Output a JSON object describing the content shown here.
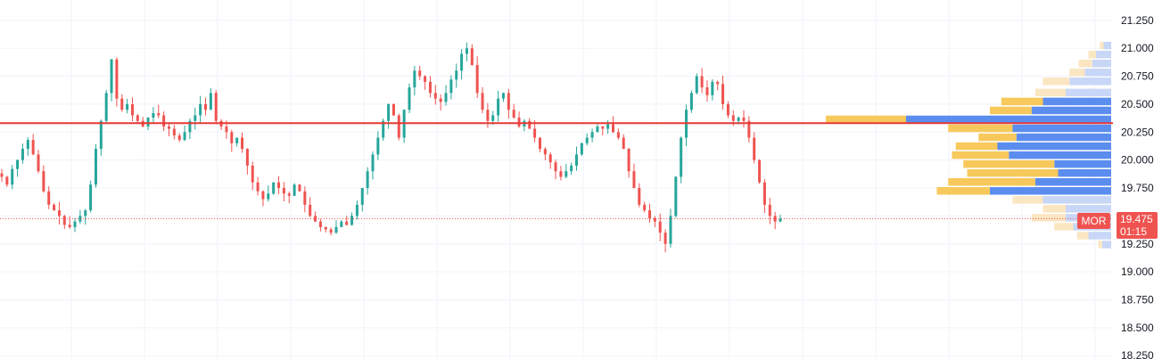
{
  "chart_data": {
    "type": "candlestick",
    "y_axis": {
      "ticks": [
        "21.250",
        "21.000",
        "20.750",
        "20.500",
        "20.250",
        "20.000",
        "19.750",
        "19.500",
        "19.250",
        "19.000",
        "18.750",
        "18.500",
        "18.250"
      ],
      "tick_values": [
        21.25,
        21.0,
        20.75,
        20.5,
        20.25,
        20.0,
        19.75,
        19.5,
        19.25,
        19.0,
        18.75,
        18.5,
        18.25
      ],
      "range": [
        18.22,
        21.4
      ]
    },
    "horizontal_line": {
      "price": 20.33,
      "color": "#e53935"
    },
    "last_price": {
      "value": "19.475",
      "countdown": "01:15",
      "symbol": "MOR",
      "price": 19.475,
      "color": "#ef5350"
    },
    "colors": {
      "up": "#26a69a",
      "down": "#ef5350",
      "vp_up": "#5b8def",
      "vp_down": "#f7c95c",
      "vp_up_light": "#c8d6f7",
      "vp_down_light": "#fbe6c2"
    },
    "series_closes": [
      19.85,
      19.78,
      19.92,
      20.0,
      20.1,
      20.18,
      20.05,
      19.9,
      19.72,
      19.6,
      19.55,
      19.5,
      19.42,
      19.4,
      19.45,
      19.5,
      19.55,
      19.78,
      20.1,
      20.35,
      20.6,
      20.9,
      20.55,
      20.45,
      20.5,
      20.4,
      20.35,
      20.3,
      20.38,
      20.42,
      20.4,
      20.3,
      20.28,
      20.22,
      20.18,
      20.25,
      20.35,
      20.4,
      20.5,
      20.45,
      20.6,
      20.35,
      20.3,
      20.25,
      20.15,
      20.2,
      20.1,
      19.95,
      19.8,
      19.72,
      19.65,
      19.7,
      19.8,
      19.75,
      19.7,
      19.68,
      19.78,
      19.72,
      19.6,
      19.5,
      19.45,
      19.4,
      19.38,
      19.35,
      19.4,
      19.45,
      19.42,
      19.5,
      19.6,
      19.75,
      19.9,
      20.05,
      20.2,
      20.35,
      20.5,
      20.4,
      20.2,
      20.45,
      20.65,
      20.8,
      20.75,
      20.7,
      20.6,
      20.55,
      20.52,
      20.6,
      20.72,
      20.8,
      20.95,
      21.0,
      20.85,
      20.6,
      20.45,
      20.35,
      20.4,
      20.55,
      20.6,
      20.45,
      20.38,
      20.3,
      20.35,
      20.28,
      20.2,
      20.1,
      20.05,
      19.98,
      19.9,
      19.85,
      19.9,
      19.95,
      20.05,
      20.15,
      20.2,
      20.25,
      20.3,
      20.28,
      20.32,
      20.25,
      20.2,
      20.1,
      19.9,
      19.75,
      19.6,
      19.55,
      19.48,
      19.45,
      19.35,
      19.25,
      19.5,
      19.85,
      20.2,
      20.45,
      20.6,
      20.75,
      20.65,
      20.58,
      20.7,
      20.68,
      20.5,
      20.4,
      20.35,
      20.38,
      20.35,
      20.2,
      20.0,
      19.8,
      19.6,
      19.5,
      19.45,
      19.475
    ],
    "volume_profile": [
      {
        "price": 21.02,
        "up": 0.1,
        "down": 0.05
      },
      {
        "price": 20.94,
        "up": 0.2,
        "down": 0.1
      },
      {
        "price": 20.86,
        "up": 0.25,
        "down": 0.18
      },
      {
        "price": 20.78,
        "up": 0.35,
        "down": 0.2
      },
      {
        "price": 20.7,
        "up": 0.55,
        "down": 0.35
      },
      {
        "price": 20.6,
        "up": 0.6,
        "down": 0.4
      },
      {
        "price": 20.52,
        "up": 0.9,
        "down": 0.55
      },
      {
        "price": 20.44,
        "up": 1.05,
        "down": 0.55
      },
      {
        "price": 20.36,
        "up": 2.3,
        "down": 0.9
      },
      {
        "price": 20.28,
        "up": 1.3,
        "down": 0.85
      },
      {
        "price": 20.2,
        "up": 1.25,
        "down": 0.5
      },
      {
        "price": 20.12,
        "up": 1.5,
        "down": 0.55
      },
      {
        "price": 20.04,
        "up": 1.35,
        "down": 0.75
      },
      {
        "price": 19.96,
        "up": 0.75,
        "down": 1.2
      },
      {
        "price": 19.88,
        "up": 0.7,
        "down": 1.2
      },
      {
        "price": 19.8,
        "up": 1.0,
        "down": 1.15
      },
      {
        "price": 19.72,
        "up": 1.6,
        "down": 0.7
      },
      {
        "price": 19.64,
        "up": 0.9,
        "down": 0.4
      },
      {
        "price": 19.56,
        "up": 0.6,
        "down": 0.3
      },
      {
        "price": 19.48,
        "up": 0.6,
        "down": 0.45
      },
      {
        "price": 19.4,
        "up": 0.5,
        "down": 0.25
      },
      {
        "price": 19.32,
        "up": 0.3,
        "down": 0.15
      },
      {
        "price": 19.24,
        "up": 0.12,
        "down": 0.05
      }
    ]
  }
}
